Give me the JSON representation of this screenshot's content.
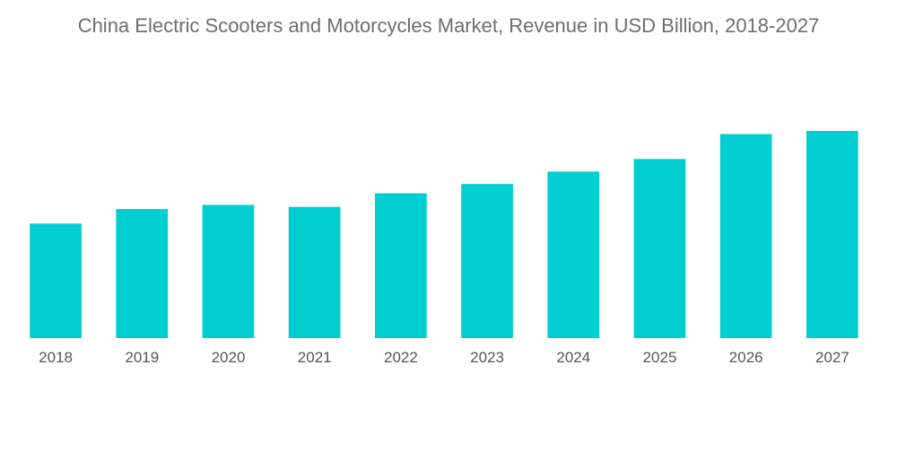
{
  "colors": {
    "bar": "#00ced1",
    "title": "#6e6e6e",
    "tick_label": "#555555",
    "background": "#ffffff"
  },
  "chart_data": {
    "type": "bar",
    "title": "China Electric Scooters and Motorcycles Market, Revenue in USD Billion, 2018-2027",
    "xlabel": "",
    "ylabel": "",
    "categories": [
      "2018",
      "2019",
      "2020",
      "2021",
      "2022",
      "2023",
      "2024",
      "2025",
      "2026",
      "2027"
    ],
    "values": [
      11.0,
      12.4,
      12.8,
      12.6,
      13.9,
      14.8,
      16.0,
      17.2,
      19.6,
      19.9
    ],
    "ylim": [
      0,
      23
    ],
    "grid": false,
    "legend": "none"
  }
}
